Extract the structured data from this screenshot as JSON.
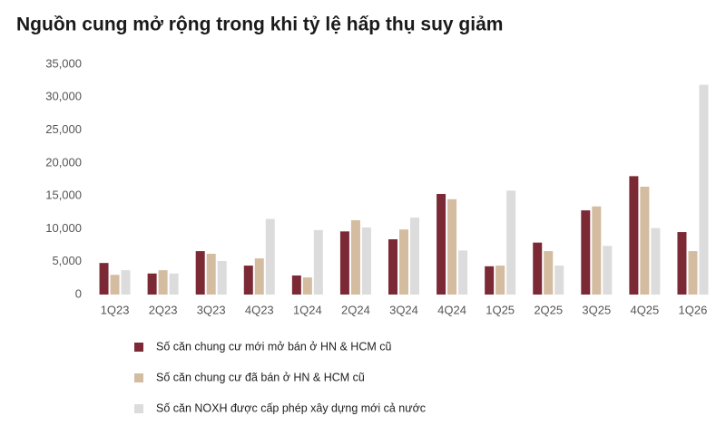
{
  "chart_data": {
    "type": "bar",
    "title": "Nguồn cung mở rộng trong khi tỷ lệ hấp thụ suy giảm",
    "categories": [
      "1Q23",
      "2Q23",
      "3Q23",
      "4Q23",
      "1Q24",
      "2Q24",
      "3Q24",
      "4Q24",
      "1Q25",
      "2Q25",
      "3Q25",
      "4Q25",
      "1Q26"
    ],
    "series": [
      {
        "name": "Số căn chung cư mới mở bán ở HN & HCM cũ",
        "color": "#7b2a35",
        "values": [
          4800,
          3200,
          6600,
          4400,
          2900,
          9600,
          8400,
          15300,
          4300,
          7900,
          12800,
          18000,
          9500
        ]
      },
      {
        "name": "Số căn chung cư đã bán ở HN & HCM cũ",
        "color": "#d4bca0",
        "values": [
          3000,
          3700,
          6200,
          5500,
          2600,
          11300,
          9900,
          14500,
          4400,
          6600,
          13400,
          16400,
          6600
        ]
      },
      {
        "name": "Số căn NOXH được cấp phép xây dựng mới cả nước",
        "color": "#dcdcdc",
        "values": [
          3700,
          3200,
          5100,
          11500,
          9800,
          10200,
          11700,
          6700,
          15800,
          4400,
          7400,
          10100,
          31900
        ]
      }
    ],
    "ylim": [
      0,
      35000
    ],
    "yticks": [
      0,
      {
        "value": 5000,
        "label": "5,000"
      },
      {
        "value": 10000,
        "label": "10,000"
      },
      {
        "value": 15000,
        "label": "15,000"
      },
      {
        "value": 20000,
        "label": "20,000"
      },
      {
        "value": 25000,
        "label": "25,000"
      },
      {
        "value": 30000,
        "label": "30,000"
      },
      {
        "value": 35000,
        "label": "35,000"
      }
    ],
    "grid": false,
    "legend": "bottom"
  }
}
